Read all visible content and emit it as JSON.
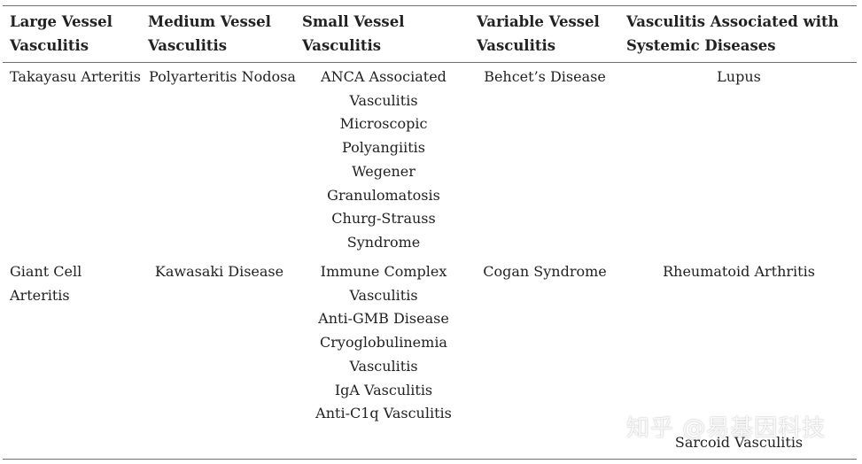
{
  "table": {
    "headers": [
      [
        "Large Vessel",
        "Vasculitis"
      ],
      [
        "Medium Vessel",
        "Vasculitis"
      ],
      [
        "Small Vessel",
        "Vasculitis"
      ],
      [
        "Variable Vessel",
        "Vasculitis"
      ],
      [
        "Vasculitis Associated with",
        "Systemic Diseases"
      ]
    ],
    "rows": [
      [
        [
          "Takayasu Arteritis"
        ],
        [
          "Polyarteritis Nodosa"
        ],
        [
          "ANCA Associated",
          "Vasculitis",
          "Microscopic",
          "Polyangiitis",
          "Wegener",
          "Granulomatosis",
          "Churg-Strauss",
          "Syndrome"
        ],
        [
          "Behcet’s Disease"
        ],
        [
          "Lupus"
        ]
      ],
      [
        [
          "Giant Cell",
          "Arteritis"
        ],
        [
          "Kawasaki Disease"
        ],
        [
          "Immune Complex",
          "Vasculitis",
          "Anti-GMB Disease",
          "Cryoglobulinemia",
          "Vasculitis",
          "IgA Vasculitis",
          "Anti-C1q Vasculitis"
        ],
        [
          "Cogan Syndrome"
        ],
        [
          "Rheumatoid Arthritis"
        ]
      ]
    ],
    "trailing_cell": "Sarcoid Vasculitis"
  },
  "watermark": "知乎 @易基因科技"
}
